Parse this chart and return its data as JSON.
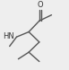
{
  "bg_color": "#eeeeee",
  "line_color": "#555555",
  "text_color": "#333333",
  "bond_width": 1.0,
  "figsize": [
    0.77,
    0.78
  ],
  "dpi": 100,
  "o_label": {
    "text": "O",
    "fontsize": 6.0
  },
  "hn_label": {
    "text": "HN",
    "fontsize": 6.0
  }
}
